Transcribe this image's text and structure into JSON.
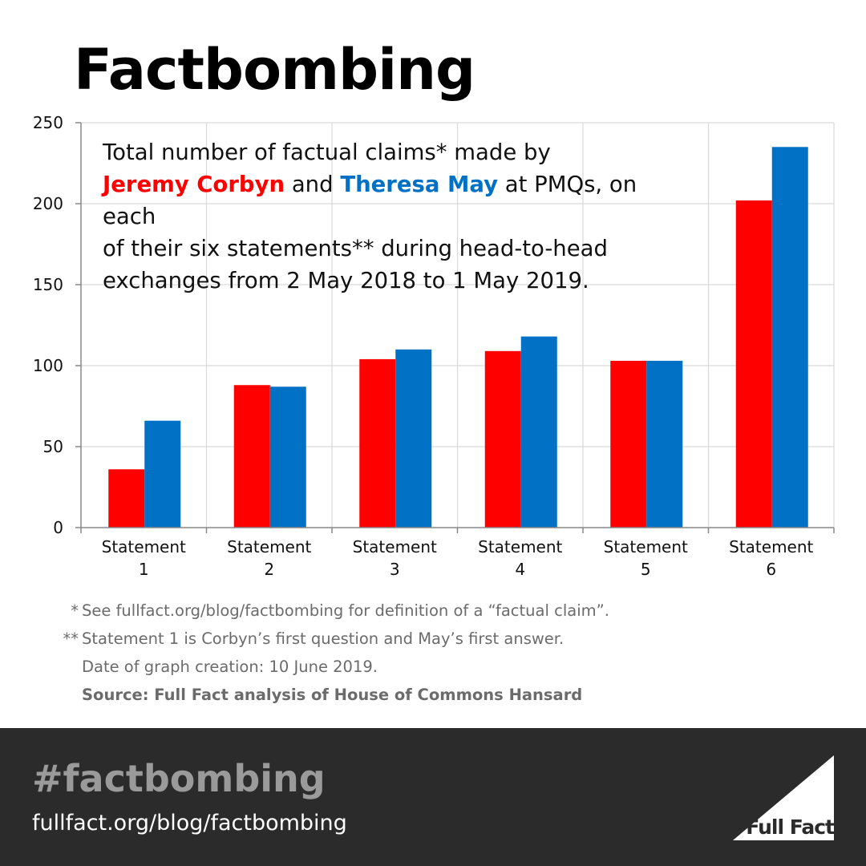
{
  "page": {
    "title": "Factbombing"
  },
  "chart_data": {
    "type": "bar",
    "categories": [
      [
        "Statement",
        "1"
      ],
      [
        "Statement",
        "2"
      ],
      [
        "Statement",
        "3"
      ],
      [
        "Statement",
        "4"
      ],
      [
        "Statement",
        "5"
      ],
      [
        "Statement",
        "6"
      ]
    ],
    "series": [
      {
        "name": "Jeremy Corbyn",
        "color": "#ff0000",
        "values": [
          36,
          88,
          104,
          109,
          103,
          202
        ]
      },
      {
        "name": "Theresa May",
        "color": "#0071c5",
        "values": [
          66,
          87,
          110,
          118,
          103,
          235
        ]
      }
    ],
    "ylim": [
      0,
      250
    ],
    "yticks": [
      0,
      50,
      100,
      150,
      200,
      250
    ],
    "grid": true,
    "note": {
      "line1": "Total number of factual claims* made by",
      "corbyn": "Jeremy Corbyn",
      "and": " and ",
      "may": "Theresa May",
      "line2_rest": " at PMQs, on each",
      "line3": "of their six statements** during head-to-head",
      "line4": "exchanges from 2 May 2018 to 1 May 2019."
    }
  },
  "footnotes": {
    "mark1": "*",
    "text1": "See fullfact.org/blog/factbombing for definition of a “factual claim”.",
    "mark2": "**",
    "text2": "Statement 1 is Corbyn’s first question and May’s first answer.",
    "date": "Date of graph creation: 10 June 2019.",
    "source": "Source: Full Fact analysis of House of Commons Hansard"
  },
  "footer": {
    "hashtag": "#factbombing",
    "url": "fullfact.org/blog/factbombing",
    "logo_text": "Full Fact",
    "background": "#2b2b2b"
  }
}
